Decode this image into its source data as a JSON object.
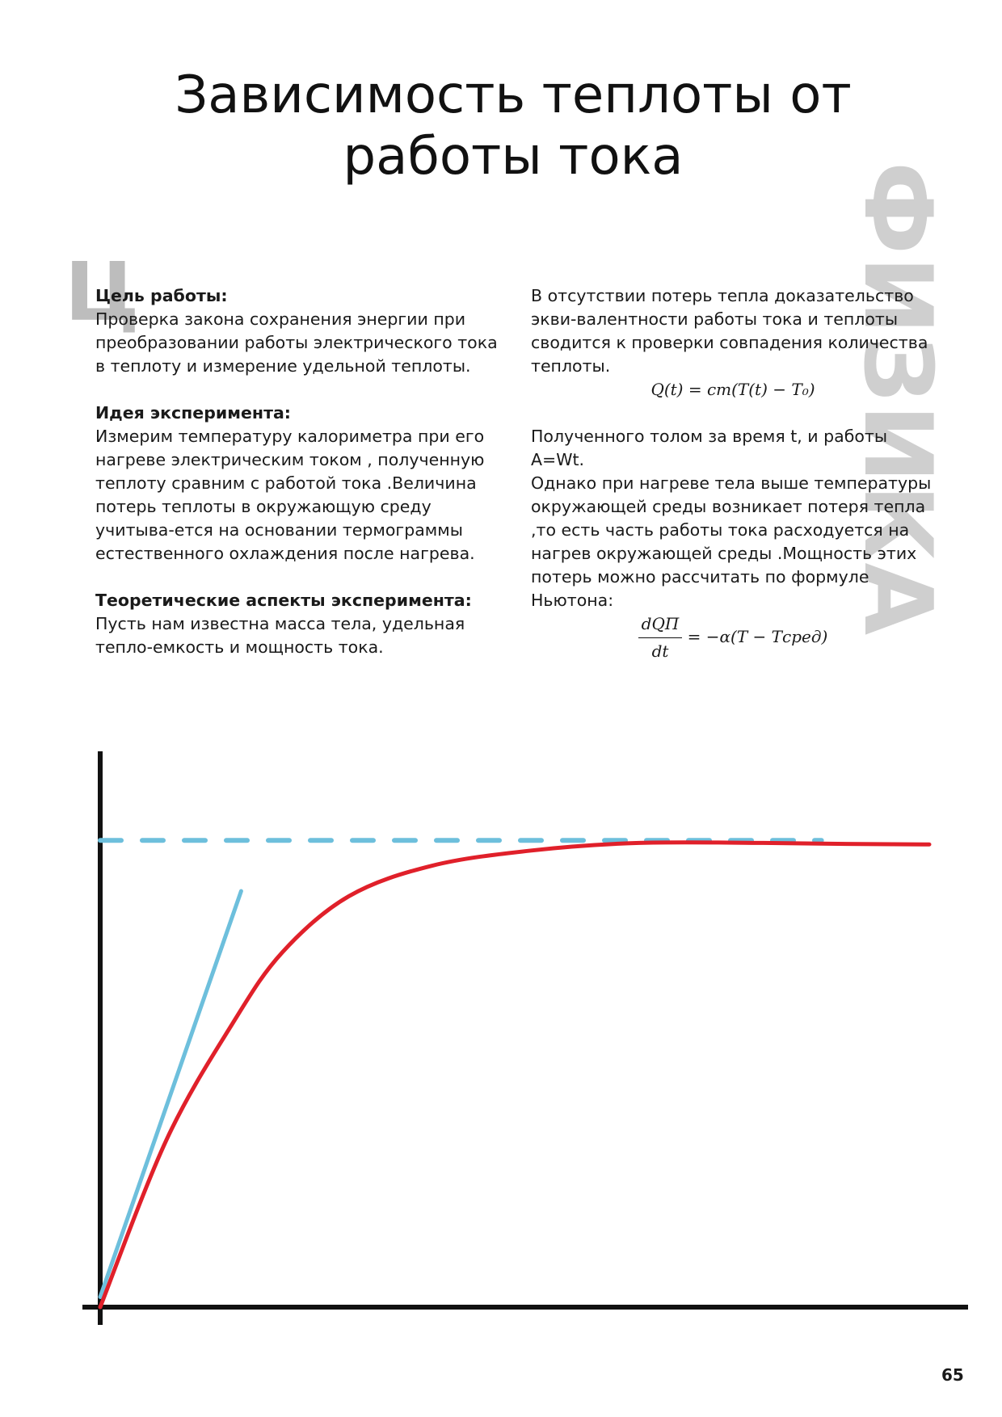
{
  "title": {
    "line1": "Зависимость теплоты от",
    "line2": "работы тока"
  },
  "side_label": "ФИЗИКА",
  "dropcap": "Ц",
  "left_column": {
    "goal_heading": "Цель работы:",
    "goal_text": "Проверка закона сохранения энергии при преобразовании работы электрического тока в теплоту и измерение удельной теплоты.",
    "idea_heading": "Идея эксперимента:",
    "idea_text": "Измерим температуру калориметра при его нагреве электрическим током , полученную теплоту сравним с работой тока .Величина потерь теплоты в окружающую среду учитыва-ется на основании термограммы естественного охлаждения после нагрева.",
    "theory_heading": "Теоретические аспекты эксперимента:",
    "theory_text": "Пусть нам известна масса тела, удельная тепло-емкость и мощность тока."
  },
  "right_column": {
    "para1": "В отсутствии потерь тепла доказательство экви-валентности работы тока и теплоты сводится к проверки совпадения количества теплоты.",
    "formula1": "Q(t) = cm(T(t) − T₀)",
    "para2": "Полученного толом за время t, и работы A=Wt.",
    "para3": "Однако при нагреве тела выше температуры окружающей среды возникает потеря тепла ,то есть часть работы тока расходуется на нагрев окружающей среды .Мощность этих потерь можно рассчитать по формуле Ньютона:",
    "formula2_num": "dQП",
    "formula2_den": "dt",
    "formula2_rhs": "= −α(T − Tсред)"
  },
  "page_number": "65",
  "chart_data": {
    "type": "line",
    "xlim": [
      0,
      100
    ],
    "ylim": [
      0,
      100
    ],
    "colors": {
      "axes": "#111111",
      "curve": "#e0202a",
      "asymptote": "#6dbfdc",
      "tangent": "#6dbfdc"
    },
    "series": [
      {
        "style": "solid",
        "color": "#e0202a",
        "x": [
          0,
          8,
          16,
          22,
          30,
          40,
          52,
          65,
          80,
          90,
          100
        ],
        "y": [
          0,
          33,
          56,
          70,
          81,
          87,
          90,
          91.5,
          91.5,
          91.3,
          91.2
        ]
      },
      {
        "style": "solid",
        "color": "#6dbfdc",
        "x": [
          0,
          17
        ],
        "y": [
          2,
          82
        ]
      },
      {
        "style": "dashed",
        "color": "#6dbfdc",
        "x": [
          0,
          87
        ],
        "y": [
          92,
          92
        ]
      }
    ]
  }
}
